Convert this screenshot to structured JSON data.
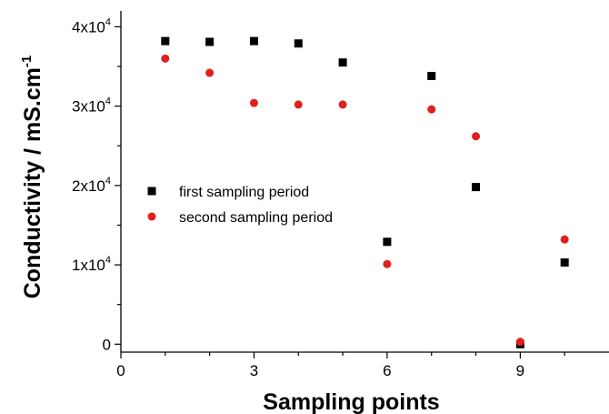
{
  "chart_data": {
    "type": "scatter",
    "xlabel": "Sampling points",
    "ylabel": "Conductivity / mS.cm",
    "ylabel_superscript": "-1",
    "xlim": [
      0,
      11
    ],
    "ylim": [
      -1000,
      42000
    ],
    "x_ticks": [
      "0",
      "3",
      "6",
      "9"
    ],
    "y_ticks": [
      {
        "value": 0,
        "mantissa": "0",
        "base": "",
        "exponent": ""
      },
      {
        "value": 10000,
        "mantissa": "1x",
        "base": "10",
        "exponent": "4"
      },
      {
        "value": 20000,
        "mantissa": "2x",
        "base": "10",
        "exponent": "4"
      },
      {
        "value": 30000,
        "mantissa": "3x",
        "base": "10",
        "exponent": "4"
      },
      {
        "value": 40000,
        "mantissa": "4x",
        "base": "10",
        "exponent": "4"
      }
    ],
    "grid": false,
    "legend_position": "center-left",
    "series": [
      {
        "name": "first sampling period",
        "marker": "square",
        "color": "#000000",
        "x": [
          1,
          2,
          3,
          4,
          5,
          6,
          7,
          8,
          9,
          10
        ],
        "y": [
          38200,
          38100,
          38200,
          37900,
          35500,
          12900,
          33800,
          19800,
          0,
          10300
        ]
      },
      {
        "name": "second sampling period",
        "marker": "circle",
        "color": "#e0201e",
        "x": [
          1,
          2,
          3,
          4,
          5,
          6,
          7,
          8,
          9,
          10
        ],
        "y": [
          36000,
          34200,
          30400,
          30200,
          30200,
          10100,
          29600,
          26200,
          300,
          13200
        ]
      }
    ]
  }
}
